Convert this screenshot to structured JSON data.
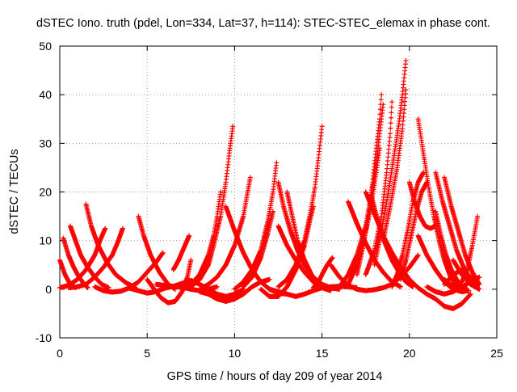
{
  "chart_data": {
    "type": "scatter",
    "title": "dSTEC Iono. truth (pdel, Lon=334, Lat=37, h=114): STEC-STEC_elemax in phase cont.",
    "xlabel": "GPS time / hours of day 209 of year 2014",
    "ylabel": "dSTEC  / TECUs",
    "xlim": [
      0,
      25
    ],
    "ylim": [
      -10,
      50
    ],
    "xticks": [
      0,
      5,
      10,
      15,
      20,
      25
    ],
    "yticks": [
      -10,
      0,
      10,
      20,
      30,
      40,
      50
    ],
    "grid": true,
    "marker": "plus",
    "color": "#ff0000",
    "series": [
      {
        "x": [
          0.0,
          0.3,
          0.6,
          0.9
        ],
        "y": [
          6.0,
          3.0,
          1.0,
          0.3
        ]
      },
      {
        "x": [
          0.2,
          0.5,
          0.8,
          1.1,
          1.4,
          1.6
        ],
        "y": [
          10.5,
          7.0,
          4.5,
          2.5,
          1.0,
          0.3
        ]
      },
      {
        "x": [
          0.6,
          0.9,
          1.2,
          1.6,
          2.0,
          2.4,
          2.8
        ],
        "y": [
          13.0,
          10.0,
          7.0,
          4.5,
          2.5,
          1.0,
          0.3
        ]
      },
      {
        "x": [
          1.5,
          1.8,
          2.2,
          2.7,
          3.2,
          3.8,
          4.3
        ],
        "y": [
          17.5,
          13.0,
          9.0,
          5.5,
          3.0,
          1.3,
          0.4
        ]
      },
      {
        "x": [
          0.0,
          0.5,
          1.0,
          1.5,
          2.0,
          2.3,
          2.6
        ],
        "y": [
          0.3,
          0.8,
          2.0,
          4.0,
          7.0,
          10.0,
          12.5
        ]
      },
      {
        "x": [
          0.5,
          1.0,
          1.5,
          2.0,
          2.5,
          3.0,
          3.3,
          3.6
        ],
        "y": [
          0.3,
          0.5,
          1.0,
          2.5,
          4.5,
          7.0,
          9.5,
          12.5
        ]
      },
      {
        "x": [
          2.0,
          2.5,
          3.0,
          3.5,
          4.0,
          4.5,
          5.0,
          5.5,
          5.9
        ],
        "y": [
          0.5,
          -0.3,
          -0.6,
          -0.4,
          0.3,
          1.5,
          3.5,
          5.5,
          7.5
        ]
      },
      {
        "x": [
          4.5,
          4.8,
          5.2,
          5.7,
          6.2,
          6.6
        ],
        "y": [
          15.0,
          11.0,
          7.0,
          3.5,
          1.0,
          0.0
        ]
      },
      {
        "x": [
          4.0,
          4.5,
          5.0,
          5.5,
          6.0,
          6.5,
          7.0,
          7.5,
          8.0,
          8.5,
          9.0
        ],
        "y": [
          0.2,
          -0.3,
          -0.8,
          -0.5,
          0.2,
          0.6,
          0.4,
          0.0,
          -0.3,
          0.0,
          0.5
        ]
      },
      {
        "x": [
          5.0,
          5.5,
          5.8,
          6.2,
          6.6,
          7.0,
          7.3,
          7.5
        ],
        "y": [
          2.0,
          -0.5,
          -1.8,
          -2.8,
          -2.5,
          -0.5,
          2.5,
          6.0
        ]
      },
      {
        "x": [
          5.5,
          6.0,
          6.5,
          7.0,
          7.5,
          8.0,
          8.5,
          9.0,
          9.5,
          10.0,
          10.5
        ],
        "y": [
          1.0,
          0.8,
          0.6,
          1.2,
          1.8,
          1.0,
          0.0,
          -1.0,
          -1.5,
          -1.0,
          0.0
        ]
      },
      {
        "x": [
          6.5,
          6.8,
          7.1,
          7.4
        ],
        "y": [
          4.0,
          6.0,
          8.5,
          11.0
        ]
      },
      {
        "x": [
          7.5,
          8.0,
          8.5,
          8.8,
          9.2,
          9.5,
          9.7,
          9.9
        ],
        "y": [
          0.5,
          2.0,
          5.0,
          9.0,
          15.0,
          22.0,
          28.0,
          33.5
        ]
      },
      {
        "x": [
          7.0,
          7.5,
          8.0,
          8.5,
          8.8,
          9.0,
          9.2
        ],
        "y": [
          0.0,
          1.0,
          3.0,
          7.0,
          11.0,
          15.0,
          20.0
        ]
      },
      {
        "x": [
          8.0,
          8.5,
          9.0,
          9.5,
          10.0,
          10.5,
          10.9
        ],
        "y": [
          0.0,
          1.0,
          2.5,
          5.0,
          9.0,
          15.0,
          23.0
        ]
      },
      {
        "x": [
          9.5,
          10.0,
          10.5,
          11.0,
          11.5,
          12.0,
          12.5,
          13.0
        ],
        "y": [
          17.0,
          12.0,
          7.5,
          4.0,
          1.5,
          0.0,
          -0.8,
          -1.0
        ]
      },
      {
        "x": [
          8.0,
          8.5,
          9.0,
          9.5,
          10.0,
          10.5,
          11.0,
          11.5,
          12.0
        ],
        "y": [
          -0.5,
          -1.0,
          -2.0,
          -2.5,
          -2.0,
          -1.0,
          0.5,
          1.5,
          2.0
        ]
      },
      {
        "x": [
          10.0,
          10.5,
          11.0,
          11.5,
          11.9,
          12.2,
          12.4
        ],
        "y": [
          0.0,
          1.5,
          4.0,
          8.0,
          14.0,
          20.0,
          26.0
        ]
      },
      {
        "x": [
          10.5,
          11.0,
          11.5,
          11.9,
          12.2
        ],
        "y": [
          0.5,
          2.5,
          6.5,
          11.5,
          16.0
        ]
      },
      {
        "x": [
          12.5,
          12.8,
          13.2,
          13.6,
          14.0,
          14.5,
          15.0,
          15.5,
          16.0
        ],
        "y": [
          22.0,
          17.0,
          12.0,
          8.0,
          5.0,
          2.5,
          1.0,
          0.3,
          0.0
        ]
      },
      {
        "x": [
          12.5,
          13.0,
          13.5,
          14.0,
          14.5,
          15.0,
          15.5
        ],
        "y": [
          13.0,
          9.0,
          6.0,
          3.5,
          1.5,
          0.3,
          -0.3
        ]
      },
      {
        "x": [
          12.0,
          12.5,
          13.0,
          13.5,
          14.0,
          14.5,
          15.0,
          15.5,
          16.0,
          16.5,
          17.0
        ],
        "y": [
          0.0,
          -0.5,
          -1.0,
          -1.5,
          -1.0,
          -0.3,
          0.3,
          0.5,
          0.6,
          0.5,
          0.3
        ]
      },
      {
        "x": [
          11.5,
          12.0,
          12.5,
          13.0,
          13.5,
          14.0,
          14.3,
          14.5
        ],
        "y": [
          0.0,
          -1.5,
          -1.5,
          0.5,
          4.0,
          9.0,
          14.0,
          17.0
        ]
      },
      {
        "x": [
          12.5,
          13.0,
          13.5,
          14.0,
          14.3,
          14.6,
          14.8,
          15.0
        ],
        "y": [
          0.5,
          2.0,
          5.0,
          10.0,
          15.0,
          21.0,
          27.0,
          33.5
        ]
      },
      {
        "x": [
          13.0,
          13.3,
          13.6,
          14.0,
          14.4,
          14.8
        ],
        "y": [
          20.0,
          15.0,
          10.0,
          6.0,
          3.0,
          1.0
        ]
      },
      {
        "x": [
          14.5,
          14.8,
          15.0,
          15.3,
          15.6
        ],
        "y": [
          0.3,
          1.5,
          3.0,
          5.0,
          6.5
        ]
      },
      {
        "x": [
          15.5,
          16.0,
          16.5,
          17.0,
          17.5,
          18.0,
          18.5,
          19.0,
          19.5,
          20.0,
          20.5
        ],
        "y": [
          5.0,
          2.5,
          0.8,
          0.0,
          -0.3,
          -0.1,
          0.3,
          1.0,
          2.5,
          4.5,
          7.0
        ]
      },
      {
        "x": [
          16.0,
          16.5,
          17.0,
          17.5,
          17.8,
          18.1,
          18.3,
          18.5
        ],
        "y": [
          0.5,
          3.0,
          7.0,
          13.0,
          19.0,
          26.0,
          32.0,
          38.0
        ]
      },
      {
        "x": [
          16.5,
          17.0,
          17.4,
          17.8,
          18.1,
          18.3
        ],
        "y": [
          1.0,
          5.0,
          10.0,
          17.0,
          24.0,
          29.0
        ]
      },
      {
        "x": [
          17.0,
          17.3,
          17.6,
          17.9,
          18.1,
          18.3,
          18.4
        ],
        "y": [
          3.0,
          8.0,
          14.0,
          22.0,
          29.0,
          35.0,
          40.0
        ]
      },
      {
        "x": [
          16.5,
          17.0,
          17.5,
          18.0,
          18.5,
          19.0,
          19.5
        ],
        "y": [
          18.0,
          13.5,
          9.5,
          6.0,
          3.5,
          1.5,
          0.5
        ]
      },
      {
        "x": [
          17.5,
          18.0,
          18.5,
          19.0,
          19.5,
          20.0
        ],
        "y": [
          20.0,
          15.5,
          11.0,
          7.5,
          4.5,
          2.0
        ]
      },
      {
        "x": [
          17.8,
          18.2,
          18.6,
          19.0,
          19.4,
          19.8,
          20.2
        ],
        "y": [
          19.5,
          14.0,
          9.5,
          6.0,
          3.5,
          1.5,
          0.5
        ]
      },
      {
        "x": [
          18.0,
          18.4,
          18.8,
          19.1,
          19.4,
          19.6,
          19.8
        ],
        "y": [
          5.0,
          12.0,
          20.0,
          27.0,
          34.0,
          40.0,
          47.0
        ]
      },
      {
        "x": [
          17.5,
          18.0,
          18.4,
          18.7,
          18.9,
          19.0
        ],
        "y": [
          3.0,
          8.0,
          15.0,
          24.0,
          32.0,
          38.5
        ]
      },
      {
        "x": [
          18.5,
          18.9,
          19.3,
          19.6,
          19.8
        ],
        "y": [
          10.0,
          17.0,
          25.0,
          33.0,
          41.0
        ]
      },
      {
        "x": [
          19.0,
          19.3,
          19.6,
          19.9,
          20.2,
          20.5,
          20.8
        ],
        "y": [
          0.5,
          3.0,
          7.0,
          12.0,
          18.0,
          22.0,
          24.0
        ]
      },
      {
        "x": [
          19.5,
          19.8,
          20.1,
          20.4,
          20.7,
          21.0
        ],
        "y": [
          2.0,
          6.0,
          11.0,
          16.0,
          20.0,
          22.0
        ]
      },
      {
        "x": [
          20.0,
          20.3,
          20.6,
          20.9,
          21.2,
          21.5
        ],
        "y": [
          22.0,
          18.0,
          15.0,
          13.0,
          12.5,
          13.0
        ]
      },
      {
        "x": [
          20.5,
          20.8,
          21.1,
          21.4,
          21.7,
          22.0,
          22.3,
          22.6
        ],
        "y": [
          35.0,
          28.0,
          21.0,
          15.0,
          10.0,
          6.0,
          3.0,
          1.0
        ]
      },
      {
        "x": [
          20.0,
          20.5,
          21.0,
          21.5,
          22.0,
          22.5,
          23.0,
          23.5
        ],
        "y": [
          2.0,
          0.3,
          -1.0,
          -2.0,
          -3.5,
          -4.0,
          -3.0,
          -1.0
        ]
      },
      {
        "x": [
          20.5,
          21.0,
          21.5,
          22.0,
          22.5,
          23.0,
          23.4
        ],
        "y": [
          11.0,
          7.0,
          4.0,
          1.5,
          0.0,
          -0.5,
          -0.3
        ]
      },
      {
        "x": [
          21.5,
          21.8,
          22.1,
          22.4,
          22.7,
          23.0,
          23.3
        ],
        "y": [
          16.0,
          11.0,
          7.0,
          4.0,
          2.0,
          0.5,
          0.0
        ]
      },
      {
        "x": [
          21.5,
          21.9,
          22.3,
          22.7,
          23.1,
          23.5,
          23.9
        ],
        "y": [
          24.0,
          18.0,
          13.0,
          8.0,
          4.5,
          2.0,
          0.5
        ]
      },
      {
        "x": [
          22.0,
          22.4,
          22.8,
          23.2,
          23.6,
          24.0
        ],
        "y": [
          23.0,
          17.0,
          12.0,
          7.0,
          3.5,
          1.0
        ]
      },
      {
        "x": [
          21.0,
          21.5,
          22.0,
          22.5,
          23.0,
          23.5,
          24.0
        ],
        "y": [
          0.5,
          -0.5,
          -1.0,
          -0.5,
          0.5,
          1.5,
          2.5
        ]
      },
      {
        "x": [
          22.0,
          22.5,
          23.0,
          23.3,
          23.6,
          23.9
        ],
        "y": [
          2.0,
          0.5,
          1.5,
          4.0,
          9.0,
          15.0
        ]
      },
      {
        "x": [
          22.5,
          23.0,
          23.5,
          24.0
        ],
        "y": [
          6.0,
          3.0,
          1.0,
          0.0
        ]
      },
      {
        "x": [
          22.0,
          22.5,
          23.0,
          23.5,
          24.0
        ],
        "y": [
          1.0,
          3.0,
          4.0,
          2.5,
          1.0
        ]
      }
    ]
  }
}
